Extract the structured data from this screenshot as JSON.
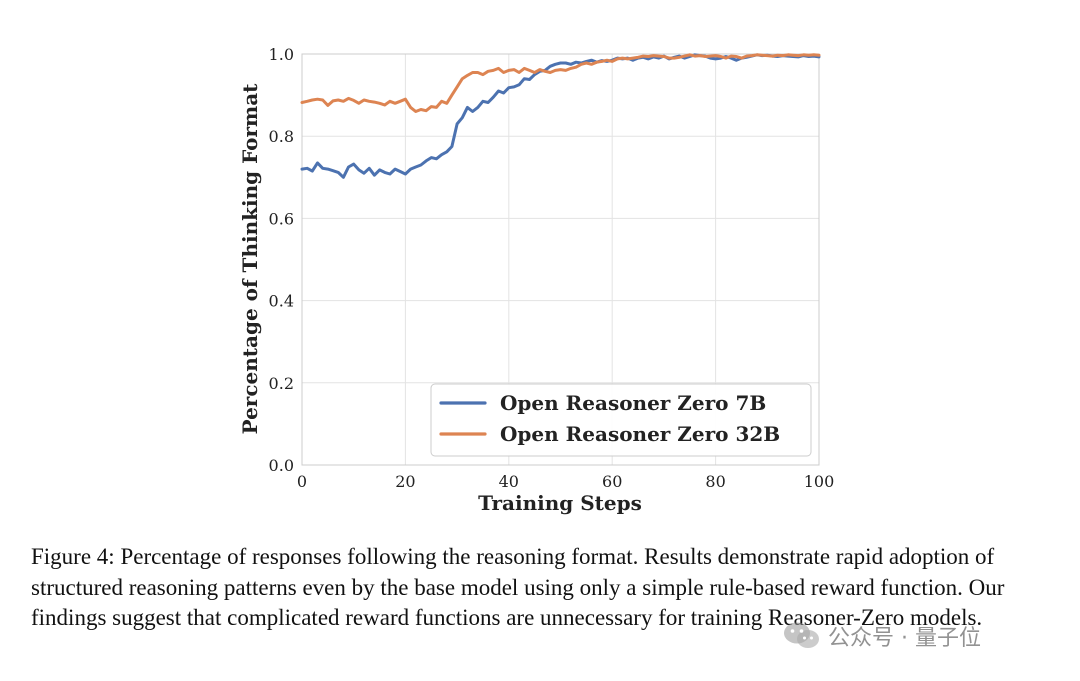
{
  "chart_data": {
    "type": "line",
    "title": "",
    "xlabel": "Training Steps",
    "ylabel": "Percentage of Thinking Format",
    "xlim": [
      0,
      100
    ],
    "ylim": [
      0.0,
      1.0
    ],
    "xticks": [
      0,
      20,
      40,
      60,
      80,
      100
    ],
    "xtick_labels": [
      "0",
      "20",
      "40",
      "60",
      "80",
      "100"
    ],
    "yticks": [
      0.0,
      0.2,
      0.4,
      0.6,
      0.8,
      1.0
    ],
    "ytick_labels": [
      "0.0",
      "0.2",
      "0.4",
      "0.6",
      "0.8",
      "1.0"
    ],
    "grid": true,
    "legend_position": "lower-right",
    "series": [
      {
        "name": "Open Reasoner Zero 7B",
        "color": "#4c72b0",
        "x": [
          0,
          1,
          2,
          3,
          4,
          5,
          6,
          7,
          8,
          9,
          10,
          11,
          12,
          13,
          14,
          15,
          16,
          17,
          18,
          19,
          20,
          21,
          22,
          23,
          24,
          25,
          26,
          27,
          28,
          29,
          30,
          31,
          32,
          33,
          34,
          35,
          36,
          37,
          38,
          39,
          40,
          41,
          42,
          43,
          44,
          45,
          46,
          47,
          48,
          49,
          50,
          51,
          52,
          53,
          54,
          55,
          56,
          57,
          58,
          59,
          60,
          61,
          62,
          63,
          64,
          65,
          66,
          67,
          68,
          69,
          70,
          71,
          72,
          73,
          74,
          75,
          76,
          77,
          78,
          79,
          80,
          81,
          82,
          83,
          84,
          85,
          86,
          87,
          88,
          89,
          90,
          91,
          92,
          93,
          94,
          95,
          96,
          97,
          98,
          99,
          100
        ],
        "y": [
          0.72,
          0.722,
          0.715,
          0.735,
          0.722,
          0.72,
          0.716,
          0.712,
          0.7,
          0.725,
          0.732,
          0.718,
          0.71,
          0.722,
          0.705,
          0.718,
          0.712,
          0.708,
          0.72,
          0.714,
          0.708,
          0.72,
          0.725,
          0.73,
          0.74,
          0.748,
          0.745,
          0.755,
          0.762,
          0.775,
          0.83,
          0.845,
          0.87,
          0.86,
          0.87,
          0.885,
          0.882,
          0.895,
          0.91,
          0.905,
          0.918,
          0.92,
          0.925,
          0.94,
          0.938,
          0.95,
          0.958,
          0.96,
          0.97,
          0.975,
          0.978,
          0.978,
          0.975,
          0.98,
          0.978,
          0.982,
          0.985,
          0.98,
          0.984,
          0.982,
          0.985,
          0.99,
          0.988,
          0.99,
          0.985,
          0.99,
          0.992,
          0.988,
          0.993,
          0.99,
          0.995,
          0.988,
          0.992,
          0.995,
          0.99,
          0.994,
          0.998,
          0.996,
          0.995,
          0.99,
          0.988,
          0.99,
          0.994,
          0.99,
          0.985,
          0.99,
          0.992,
          0.995,
          0.998,
          0.996,
          0.997,
          0.995,
          0.994,
          0.996,
          0.995,
          0.994,
          0.993,
          0.996,
          0.994,
          0.995,
          0.993
        ]
      },
      {
        "name": "Open Reasoner Zero 32B",
        "color": "#dd8452",
        "x": [
          0,
          1,
          2,
          3,
          4,
          5,
          6,
          7,
          8,
          9,
          10,
          11,
          12,
          13,
          14,
          15,
          16,
          17,
          18,
          19,
          20,
          21,
          22,
          23,
          24,
          25,
          26,
          27,
          28,
          29,
          30,
          31,
          32,
          33,
          34,
          35,
          36,
          37,
          38,
          39,
          40,
          41,
          42,
          43,
          44,
          45,
          46,
          47,
          48,
          49,
          50,
          51,
          52,
          53,
          54,
          55,
          56,
          57,
          58,
          59,
          60,
          61,
          62,
          63,
          64,
          65,
          66,
          67,
          68,
          69,
          70,
          71,
          72,
          73,
          74,
          75,
          76,
          77,
          78,
          79,
          80,
          81,
          82,
          83,
          84,
          85,
          86,
          87,
          88,
          89,
          90,
          91,
          92,
          93,
          94,
          95,
          96,
          97,
          98,
          99,
          100
        ],
        "y": [
          0.882,
          0.885,
          0.888,
          0.89,
          0.888,
          0.875,
          0.886,
          0.888,
          0.885,
          0.892,
          0.887,
          0.88,
          0.888,
          0.885,
          0.883,
          0.88,
          0.876,
          0.885,
          0.88,
          0.885,
          0.89,
          0.87,
          0.86,
          0.865,
          0.862,
          0.872,
          0.87,
          0.885,
          0.88,
          0.9,
          0.92,
          0.94,
          0.948,
          0.955,
          0.955,
          0.95,
          0.958,
          0.96,
          0.965,
          0.955,
          0.96,
          0.962,
          0.955,
          0.965,
          0.96,
          0.955,
          0.962,
          0.958,
          0.955,
          0.96,
          0.962,
          0.96,
          0.965,
          0.968,
          0.975,
          0.978,
          0.975,
          0.98,
          0.982,
          0.985,
          0.982,
          0.988,
          0.99,
          0.988,
          0.99,
          0.992,
          0.995,
          0.994,
          0.996,
          0.995,
          0.994,
          0.99,
          0.99,
          0.992,
          0.995,
          0.998,
          0.995,
          0.996,
          0.994,
          0.995,
          0.996,
          0.994,
          0.99,
          0.995,
          0.994,
          0.99,
          0.995,
          0.996,
          0.998,
          0.997,
          0.996,
          0.995,
          0.997,
          0.996,
          0.998,
          0.997,
          0.996,
          0.998,
          0.997,
          0.998,
          0.997
        ]
      }
    ]
  },
  "caption": "Figure 4: Percentage of responses following the reasoning format. Results demonstrate rapid adoption of structured reasoning patterns even by the base model using only a simple rule-based reward function. Our findings suggest that complicated reward functions are unnecessary for training Reasoner-Zero models.",
  "watermark": "公众号 · 量子位",
  "watermark_icon": "wechat-icon"
}
